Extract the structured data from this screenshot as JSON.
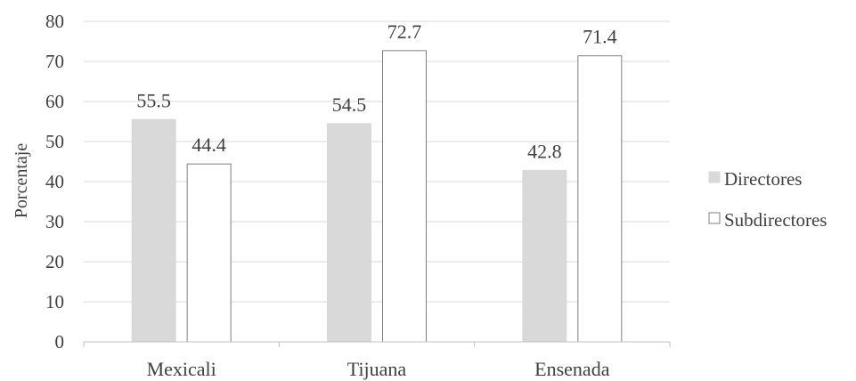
{
  "chart_data": {
    "type": "bar",
    "categories": [
      "Mexicali",
      "Tijuana",
      "Ensenada"
    ],
    "series": [
      {
        "name": "Directores",
        "values": [
          55.5,
          54.5,
          42.8
        ],
        "color": "#d9d9d9",
        "stroke": "#d9d9d9"
      },
      {
        "name": "Subdirectores",
        "values": [
          44.4,
          72.7,
          71.4
        ],
        "color": "#ffffff",
        "stroke": "#7f7f7f"
      }
    ],
    "ylabel": "Porcentaje",
    "xlabel": "",
    "ylim": [
      0,
      80
    ],
    "yticks": [
      0,
      10,
      20,
      30,
      40,
      50,
      60,
      70,
      80
    ],
    "data_labels": true,
    "grid": true,
    "legend_position": "right",
    "gridline_color": "#d9d9d9",
    "text_color": "#404040"
  }
}
